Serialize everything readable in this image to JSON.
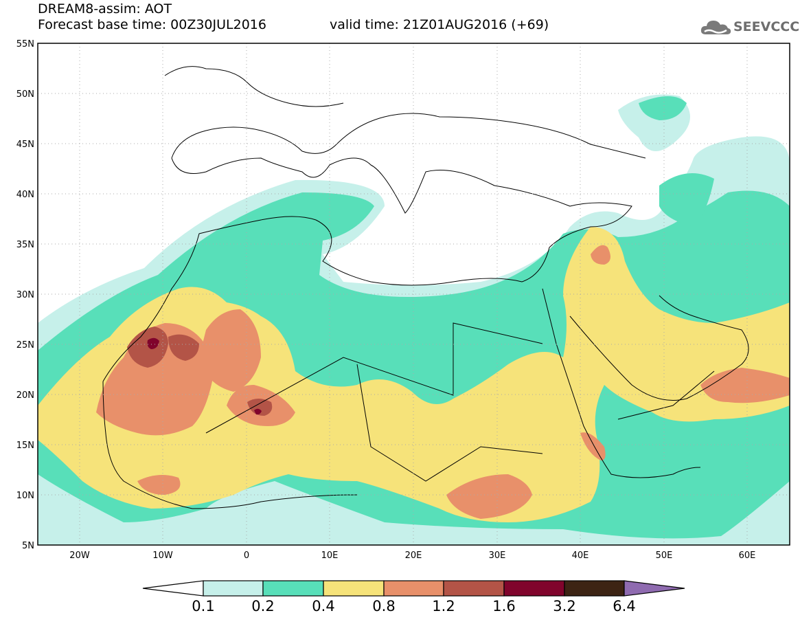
{
  "title": {
    "line1": "DREAM8-assim: AOT",
    "line2": "Forecast base time: 00Z30JUL2016",
    "valid": "valid time: 21Z01AUG2016 (+69)"
  },
  "logo": {
    "text": "SEEVCCC",
    "icon": "cloud-logo-icon"
  },
  "map": {
    "lat_labels": [
      "55N",
      "50N",
      "45N",
      "40N",
      "35N",
      "30N",
      "25N",
      "20N",
      "15N",
      "10N",
      "5N"
    ],
    "lon_labels": [
      "20W",
      "10W",
      "0",
      "10E",
      "20E",
      "30E",
      "40E",
      "50E",
      "60E"
    ],
    "extent": {
      "lon": [
        -25,
        65
      ],
      "lat": [
        5,
        55
      ]
    }
  },
  "colorbar": {
    "levels": [
      "0.1",
      "0.2",
      "0.4",
      "0.8",
      "1.2",
      "1.6",
      "3.2",
      "6.4"
    ],
    "colors": [
      "#ffffff",
      "#c6f0ea",
      "#58dfb9",
      "#f6e37a",
      "#e8906a",
      "#b35447",
      "#80042c",
      "#3d2414",
      "#8f6bb0"
    ]
  }
}
